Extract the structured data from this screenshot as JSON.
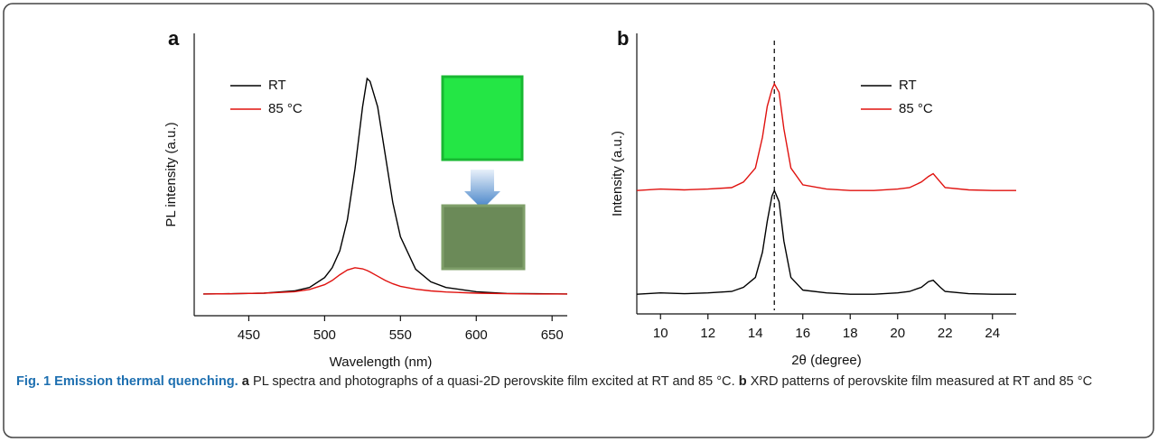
{
  "chart_data": [
    {
      "type": "line",
      "panel_label": "a",
      "xlabel": "Wavelength (nm)",
      "ylabel": "PL intensity (a.u.)",
      "x": [
        420,
        440,
        460,
        480,
        490,
        500,
        505,
        510,
        515,
        520,
        525,
        528,
        530,
        535,
        540,
        545,
        550,
        560,
        570,
        580,
        600,
        620,
        640,
        660
      ],
      "series": [
        {
          "name": "RT",
          "color": "#000000",
          "values": [
            0.077,
            0.078,
            0.08,
            0.088,
            0.1,
            0.135,
            0.17,
            0.23,
            0.34,
            0.52,
            0.74,
            0.84,
            0.83,
            0.74,
            0.57,
            0.4,
            0.28,
            0.165,
            0.12,
            0.1,
            0.085,
            0.079,
            0.078,
            0.077
          ]
        },
        {
          "name": "85 °C",
          "color": "#e0120f",
          "values": [
            0.077,
            0.078,
            0.08,
            0.085,
            0.093,
            0.11,
            0.125,
            0.145,
            0.162,
            0.17,
            0.166,
            0.16,
            0.155,
            0.14,
            0.125,
            0.113,
            0.104,
            0.094,
            0.088,
            0.084,
            0.08,
            0.078,
            0.077,
            0.077
          ]
        }
      ],
      "xlim": [
        414,
        660
      ],
      "xticks": [
        450,
        500,
        550,
        600,
        650
      ],
      "ylim": [
        0,
        1
      ],
      "legend": "upper left"
    },
    {
      "type": "line",
      "panel_label": "b",
      "xlabel": "2θ (degree)",
      "ylabel": "Intensity (a.u.)",
      "x": [
        9,
        10,
        11,
        12,
        13,
        13.5,
        14,
        14.3,
        14.5,
        14.7,
        14.8,
        15,
        15.2,
        15.5,
        16,
        17,
        18,
        19,
        20,
        20.5,
        21,
        21.3,
        21.5,
        21.8,
        22,
        23,
        24,
        25
      ],
      "series": [
        {
          "name": "RT",
          "color": "#000000",
          "values": [
            0.07,
            0.075,
            0.072,
            0.075,
            0.08,
            0.095,
            0.13,
            0.22,
            0.33,
            0.42,
            0.44,
            0.4,
            0.26,
            0.13,
            0.085,
            0.075,
            0.07,
            0.07,
            0.075,
            0.08,
            0.095,
            0.115,
            0.12,
            0.095,
            0.08,
            0.072,
            0.07,
            0.07
          ]
        },
        {
          "name": "85 °C",
          "color": "#e0120f",
          "values": [
            0.44,
            0.445,
            0.442,
            0.445,
            0.45,
            0.47,
            0.52,
            0.63,
            0.74,
            0.8,
            0.82,
            0.79,
            0.66,
            0.52,
            0.46,
            0.445,
            0.44,
            0.44,
            0.445,
            0.45,
            0.47,
            0.49,
            0.5,
            0.47,
            0.45,
            0.442,
            0.44,
            0.44
          ]
        }
      ],
      "xlim": [
        9,
        25
      ],
      "xticks": [
        10,
        12,
        14,
        16,
        18,
        20,
        22,
        24
      ],
      "ylim": [
        0,
        1
      ],
      "reference_line_x": 14.8,
      "legend": "upper right"
    }
  ],
  "caption": {
    "label": "Fig. 1",
    "title": "Emission thermal quenching.",
    "a": "a",
    "a_text": "PL spectra and photographs of a quasi-2D perovskite film excited at RT and 85 °C.",
    "b": "b",
    "b_text": "XRD patterns of perovskite film measured at RT and 85 °C"
  }
}
